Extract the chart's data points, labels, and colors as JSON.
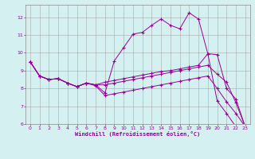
{
  "xlabel": "Windchill (Refroidissement éolien,°C)",
  "bg_color": "#d4f0f0",
  "line_color": "#990099",
  "grid_color": "#aaaaaa",
  "xlim": [
    -0.5,
    23.5
  ],
  "ylim": [
    6.0,
    12.7
  ],
  "xticks": [
    0,
    1,
    2,
    3,
    4,
    5,
    6,
    7,
    8,
    9,
    10,
    11,
    12,
    13,
    14,
    15,
    16,
    17,
    18,
    19,
    20,
    21,
    22,
    23
  ],
  "yticks": [
    6,
    7,
    8,
    9,
    10,
    11,
    12
  ],
  "lines": [
    {
      "x": [
        0,
        1,
        2,
        3,
        4,
        5,
        6,
        7,
        8,
        9,
        10,
        11,
        12,
        13,
        14,
        15,
        16,
        17,
        18,
        19,
        20,
        21,
        22,
        23
      ],
      "y": [
        9.5,
        8.7,
        8.5,
        8.55,
        8.3,
        8.1,
        8.3,
        8.2,
        7.75,
        9.55,
        10.3,
        11.05,
        11.15,
        11.55,
        11.9,
        11.55,
        11.35,
        12.25,
        11.9,
        9.95,
        7.3,
        6.6,
        5.85,
        5.85
      ]
    },
    {
      "x": [
        0,
        1,
        2,
        3,
        4,
        5,
        6,
        7,
        8,
        9,
        10,
        11,
        12,
        13,
        14,
        15,
        16,
        17,
        18,
        19,
        20,
        21,
        22,
        23
      ],
      "y": [
        9.5,
        8.7,
        8.5,
        8.55,
        8.3,
        8.1,
        8.3,
        8.2,
        8.35,
        8.45,
        8.55,
        8.65,
        8.75,
        8.85,
        8.95,
        9.0,
        9.1,
        9.2,
        9.3,
        9.95,
        9.9,
        8.0,
        7.4,
        5.85
      ]
    },
    {
      "x": [
        0,
        1,
        2,
        3,
        4,
        5,
        6,
        7,
        8,
        9,
        10,
        11,
        12,
        13,
        14,
        15,
        16,
        17,
        18,
        19,
        20,
        21,
        22,
        23
      ],
      "y": [
        9.5,
        8.7,
        8.5,
        8.55,
        8.3,
        8.1,
        8.3,
        8.2,
        8.2,
        8.3,
        8.4,
        8.5,
        8.6,
        8.7,
        8.8,
        8.9,
        9.0,
        9.1,
        9.2,
        9.3,
        8.8,
        8.35,
        7.2,
        5.85
      ]
    },
    {
      "x": [
        0,
        1,
        2,
        3,
        4,
        5,
        6,
        7,
        8,
        9,
        10,
        11,
        12,
        13,
        14,
        15,
        16,
        17,
        18,
        19,
        20,
        21,
        22,
        23
      ],
      "y": [
        9.5,
        8.7,
        8.5,
        8.55,
        8.3,
        8.1,
        8.3,
        8.15,
        7.6,
        7.7,
        7.8,
        7.9,
        8.0,
        8.1,
        8.2,
        8.3,
        8.4,
        8.5,
        8.6,
        8.7,
        8.0,
        7.25,
        6.6,
        5.85
      ]
    }
  ]
}
